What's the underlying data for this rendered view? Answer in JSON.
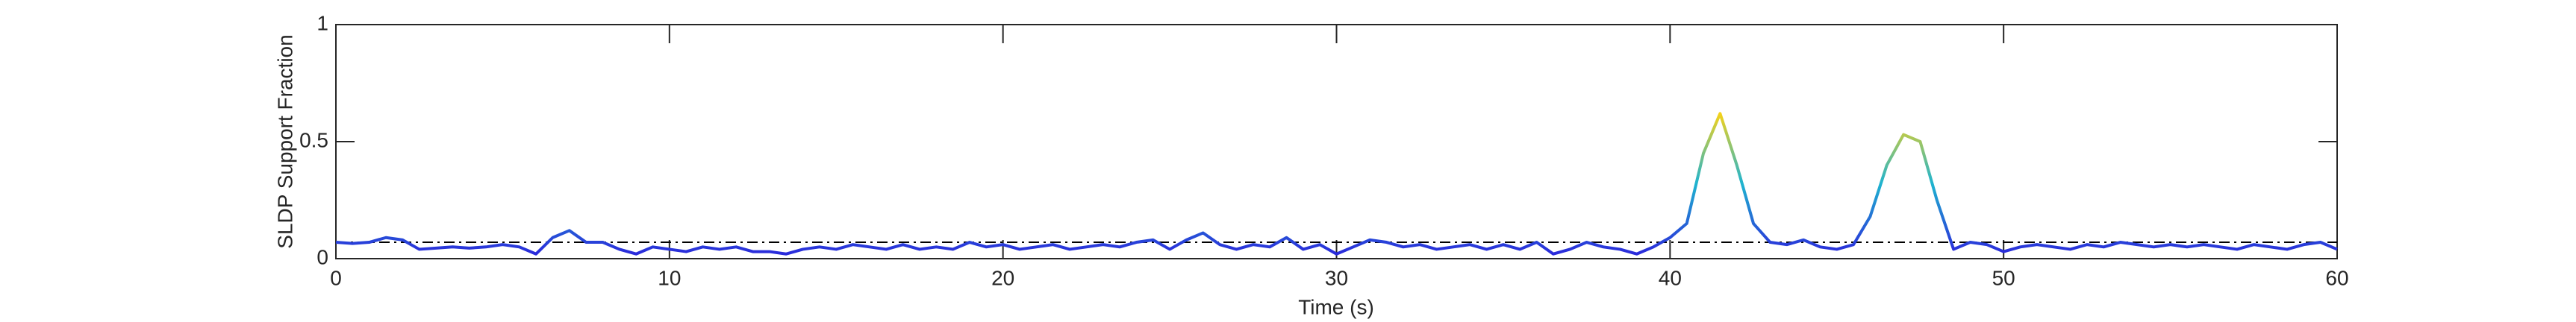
{
  "chart_data": {
    "type": "line",
    "xlabel": "Time (s)",
    "ylabel": "SLDP Support Fraction",
    "xlim": [
      0,
      60
    ],
    "xticks": [
      0,
      10,
      20,
      30,
      40,
      50,
      60
    ],
    "ylim": [
      0,
      1
    ],
    "yticks": [
      0,
      0.5,
      1
    ],
    "threshold": 0.07,
    "colormap": [
      "#2a2adb",
      "#1fb4d0",
      "#f5d21a"
    ],
    "x": [
      0,
      0.5,
      1,
      1.5,
      2,
      2.5,
      3,
      3.5,
      4,
      4.5,
      5,
      5.5,
      6,
      6.5,
      7,
      7.5,
      8,
      8.5,
      9,
      9.5,
      10,
      10.5,
      11,
      11.5,
      12,
      12.5,
      13,
      13.5,
      14,
      14.5,
      15,
      15.5,
      16,
      16.5,
      17,
      17.5,
      18,
      18.5,
      19,
      19.5,
      20,
      20.5,
      21,
      21.5,
      22,
      22.5,
      23,
      23.5,
      24,
      24.5,
      25,
      25.5,
      26,
      26.5,
      27,
      27.5,
      28,
      28.5,
      29,
      29.5,
      30,
      30.5,
      31,
      31.5,
      32,
      32.5,
      33,
      33.5,
      34,
      34.5,
      35,
      35.5,
      36,
      36.5,
      37,
      37.5,
      38,
      38.5,
      39,
      39.5,
      40,
      40.5,
      41,
      41.5,
      42,
      42.5,
      43,
      43.5,
      44,
      44.5,
      45,
      45.5,
      46,
      46.5,
      47,
      47.5,
      48,
      48.5,
      49,
      49.5,
      50,
      50.5,
      51,
      51.5,
      52,
      52.5,
      53,
      53.5,
      54,
      54.5,
      55,
      55.5,
      56,
      56.5,
      57,
      57.5,
      58,
      58.5,
      59,
      59.5,
      60
    ],
    "values": [
      0.07,
      0.065,
      0.07,
      0.09,
      0.08,
      0.04,
      0.045,
      0.05,
      0.045,
      0.05,
      0.06,
      0.05,
      0.02,
      0.09,
      0.12,
      0.07,
      0.07,
      0.04,
      0.02,
      0.05,
      0.04,
      0.03,
      0.05,
      0.04,
      0.05,
      0.03,
      0.03,
      0.02,
      0.04,
      0.05,
      0.04,
      0.06,
      0.05,
      0.04,
      0.06,
      0.04,
      0.05,
      0.04,
      0.07,
      0.05,
      0.06,
      0.04,
      0.05,
      0.06,
      0.04,
      0.05,
      0.06,
      0.05,
      0.07,
      0.08,
      0.04,
      0.08,
      0.11,
      0.06,
      0.04,
      0.06,
      0.05,
      0.09,
      0.04,
      0.06,
      0.02,
      0.05,
      0.08,
      0.07,
      0.05,
      0.06,
      0.04,
      0.05,
      0.06,
      0.04,
      0.06,
      0.04,
      0.07,
      0.02,
      0.04,
      0.07,
      0.05,
      0.04,
      0.02,
      0.05,
      0.09,
      0.15,
      0.45,
      0.62,
      0.4,
      0.15,
      0.07,
      0.06,
      0.08,
      0.05,
      0.04,
      0.06,
      0.18,
      0.4,
      0.53,
      0.5,
      0.25,
      0.04,
      0.07,
      0.06,
      0.03,
      0.05,
      0.06,
      0.05,
      0.04,
      0.06,
      0.05,
      0.07,
      0.06,
      0.05,
      0.06,
      0.05,
      0.06,
      0.05,
      0.04,
      0.06,
      0.05,
      0.04,
      0.06,
      0.07,
      0.04
    ]
  }
}
